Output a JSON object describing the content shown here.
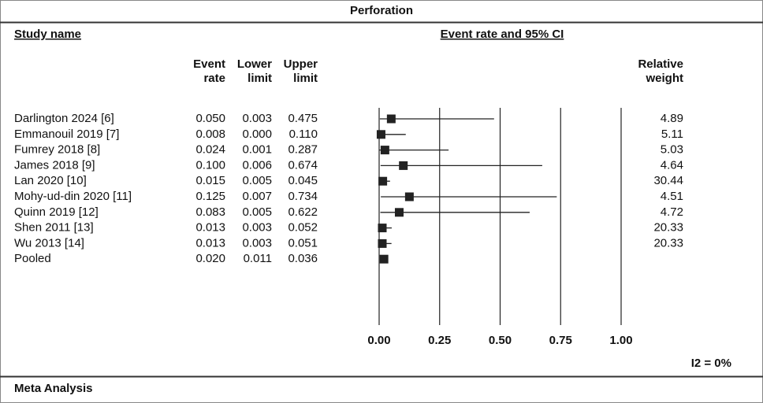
{
  "chart_data": {
    "type": "forest",
    "title": "Perforation",
    "study_header": "Study name",
    "plot_header": "Event rate and 95% CI",
    "column_headers": [
      [
        "Event",
        "rate"
      ],
      [
        "Lower",
        "limit"
      ],
      [
        "Upper",
        "limit"
      ]
    ],
    "weight_header": [
      "Relative",
      "weight"
    ],
    "categories": [
      "Darlington 2024 [6]",
      "Emmanouil 2019 [7]",
      "Fumrey 2018 [8]",
      "James 2018 [9]",
      "Lan 2020 [10]",
      "Mohy-ud-din 2020 [11]",
      "Quinn 2019 [12]",
      "Shen 2011 [13]",
      "Wu 2013 [14]",
      "Pooled"
    ],
    "values": [
      0.05,
      0.008,
      0.024,
      0.1,
      0.015,
      0.125,
      0.083,
      0.013,
      0.013,
      0.02
    ],
    "value_labels": [
      "0.050",
      "0.008",
      "0.024",
      "0.100",
      "0.015",
      "0.125",
      "0.083",
      "0.013",
      "0.013",
      "0.020"
    ],
    "lower": [
      0.003,
      0,
      0.001,
      0.006,
      0.005,
      0.007,
      0.005,
      0.003,
      0.003,
      0.011
    ],
    "lower_labels": [
      "0.003",
      "0.000",
      "0.001",
      "0.006",
      "0.005",
      "0.007",
      "0.005",
      "0.003",
      "0.003",
      "0.011"
    ],
    "upper": [
      0.475,
      0.11,
      0.287,
      0.674,
      0.045,
      0.734,
      0.622,
      0.052,
      0.051,
      0.036
    ],
    "upper_labels": [
      "0.475",
      "0.110",
      "0.287",
      "0.674",
      "0.045",
      "0.734",
      "0.622",
      "0.052",
      "0.051",
      "0.036"
    ],
    "weights": [
      4.89,
      5.11,
      5.03,
      4.64,
      30.44,
      4.51,
      4.72,
      20.33,
      20.33,
      null
    ],
    "xlim": [
      0,
      1
    ],
    "xticks": [
      {
        "value": 0,
        "label": "0.00"
      },
      {
        "value": 0.25,
        "label": "0.25"
      },
      {
        "value": 0.5,
        "label": "0.50"
      },
      {
        "value": 0.75,
        "label": "0.75"
      },
      {
        "value": 1,
        "label": "1.00"
      }
    ],
    "color": "#222222",
    "heterogeneity": "I2 = 0%",
    "footer": "Meta Analysis"
  }
}
